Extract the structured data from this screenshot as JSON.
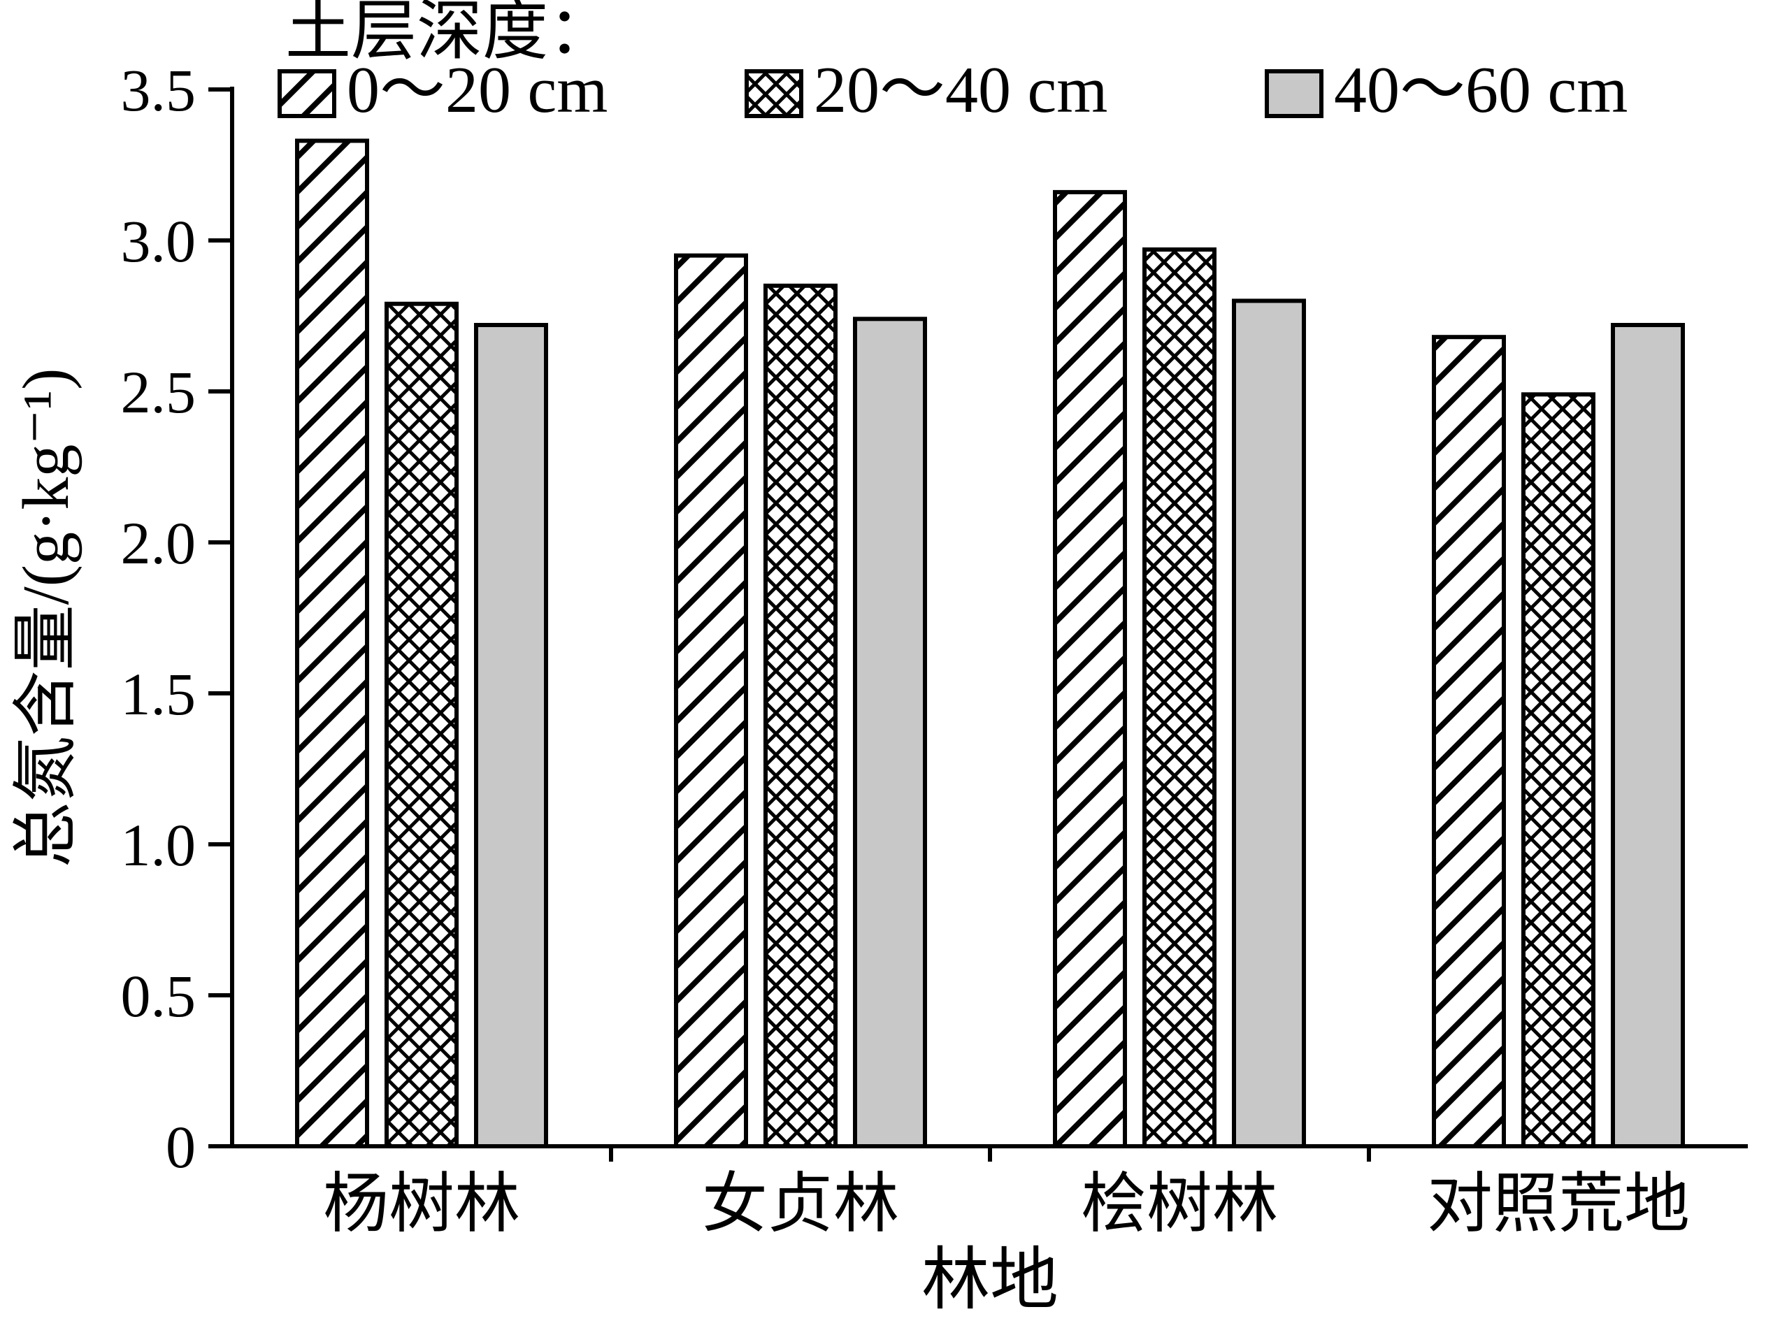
{
  "chart_data": {
    "type": "bar",
    "legend_title": "土层深度：",
    "categories": [
      "杨树林",
      "女贞林",
      "桧树林",
      "对照荒地"
    ],
    "series": [
      {
        "name": "0～20 cm",
        "pattern": "diagonal-hatch",
        "values": [
          3.33,
          2.95,
          3.16,
          2.68
        ]
      },
      {
        "name": "20～40 cm",
        "pattern": "crosshatch",
        "values": [
          2.79,
          2.85,
          2.97,
          2.49
        ]
      },
      {
        "name": "40～60 cm",
        "pattern": "solid-gray",
        "values": [
          2.72,
          2.74,
          2.8,
          2.72
        ]
      }
    ],
    "xlabel": "林地",
    "ylabel": "总氮含量/(g·kg⁻¹)",
    "ylim": [
      0,
      3.5
    ],
    "yticks": [
      0,
      0.5,
      1.0,
      1.5,
      2.0,
      2.5,
      3.0,
      3.5
    ],
    "ytick_labels": [
      "0",
      "0.5",
      "1.0",
      "1.5",
      "2.0",
      "2.5",
      "3.0",
      "3.5"
    ],
    "grid": false,
    "legend_position": "top",
    "colors": {
      "stroke": "#000000",
      "bar_fill_gray": "#c8c8c8",
      "background": "#ffffff"
    }
  }
}
